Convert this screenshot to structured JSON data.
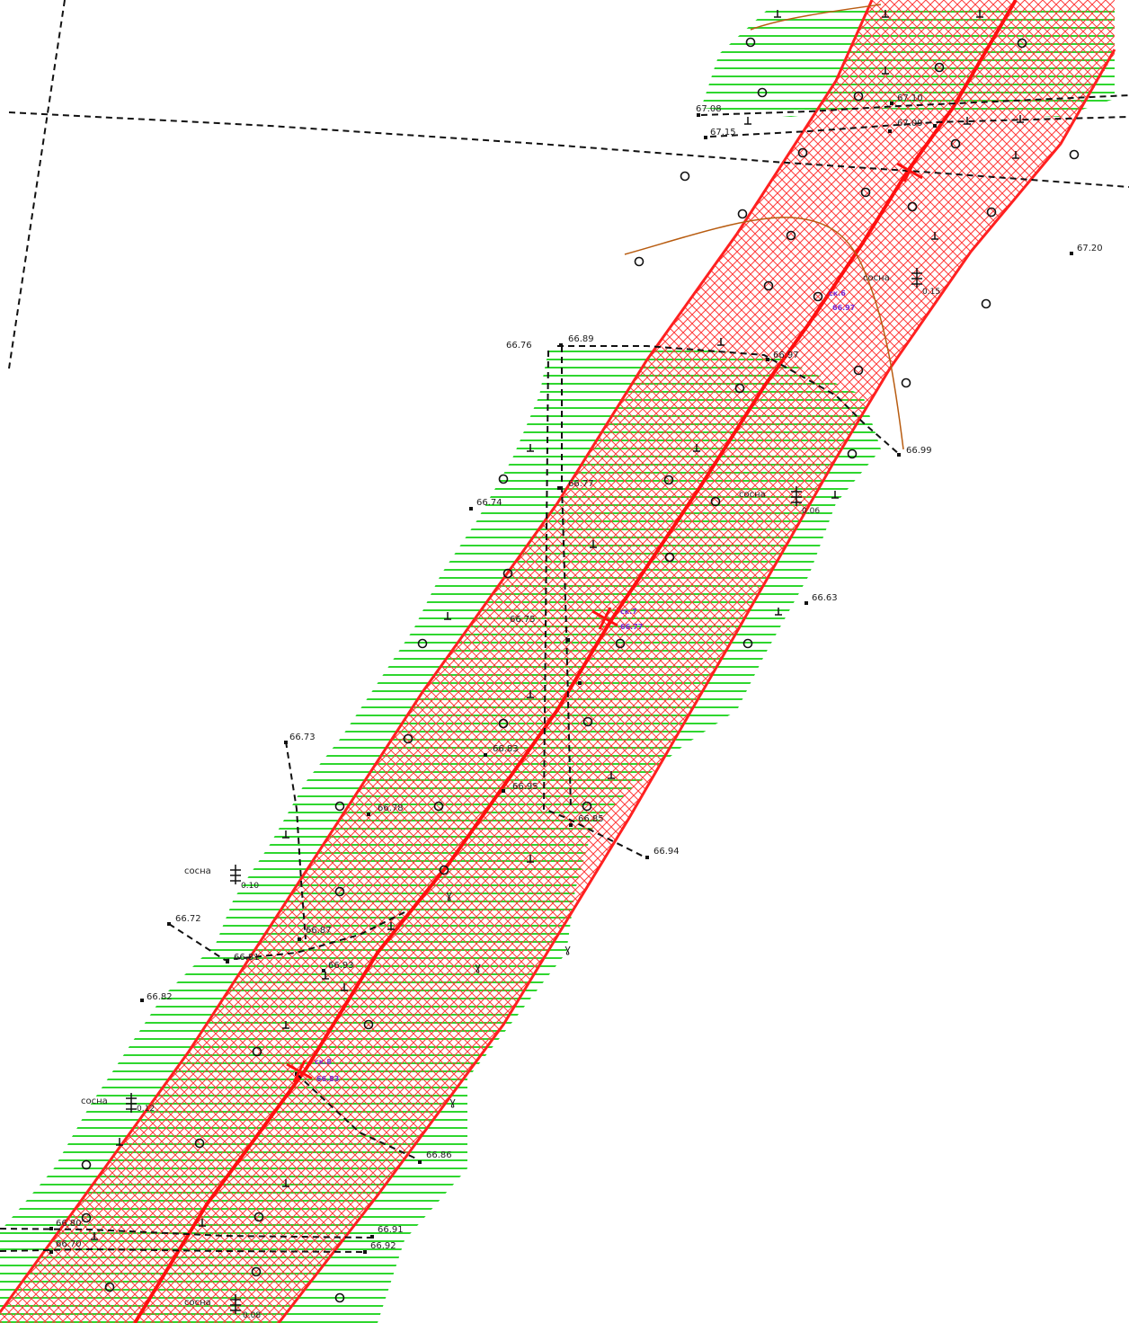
{
  "colors": {
    "background": "#ffffff",
    "vegetation_hatch": "#2fd62f",
    "protection_zone": "#ff2020",
    "zone_crosshatch": "#ff3a3a",
    "boundary_line": "#111111",
    "contour_line": "#b85c10",
    "survey_label_purple": "#7a2ad0"
  },
  "icons": {
    "survey_point": "square-dot-icon",
    "tree_symbol": "pine-tree-icon",
    "circle_symbol": "circle-marker-icon",
    "perpendicular_symbol": "perpendicular-icon",
    "pipe_axis_cross": "cross-marker-icon"
  },
  "elevation_labels": [
    {
      "id": "e1",
      "text": "67.08"
    },
    {
      "id": "e2",
      "text": "67.15"
    },
    {
      "id": "e3",
      "text": "67.10"
    },
    {
      "id": "e4",
      "text": "67.09"
    },
    {
      "id": "e5",
      "text": "67.20"
    },
    {
      "id": "e6",
      "text": "66.76"
    },
    {
      "id": "e7",
      "text": "66.89"
    },
    {
      "id": "e8",
      "text": "66.99"
    },
    {
      "id": "e9",
      "text": "66.74"
    },
    {
      "id": "e10",
      "text": "66.63"
    },
    {
      "id": "e11",
      "text": "66.75"
    },
    {
      "id": "e12",
      "text": "66.73"
    },
    {
      "id": "e13",
      "text": "66.94"
    },
    {
      "id": "e14",
      "text": "66.72"
    },
    {
      "id": "e15",
      "text": "66.82"
    },
    {
      "id": "e16",
      "text": "66.86"
    },
    {
      "id": "e17",
      "text": "66.91"
    },
    {
      "id": "e18",
      "text": "66.92"
    },
    {
      "id": "e19",
      "text": "66.80"
    },
    {
      "id": "e20",
      "text": "66.70"
    },
    {
      "id": "e21",
      "text": "66.97"
    },
    {
      "id": "e22",
      "text": "66.77"
    },
    {
      "id": "e23",
      "text": "66.83"
    },
    {
      "id": "e24",
      "text": "66.95"
    },
    {
      "id": "e25",
      "text": "66.78"
    },
    {
      "id": "e26",
      "text": "66.85"
    },
    {
      "id": "e27",
      "text": "66.87"
    },
    {
      "id": "e28",
      "text": "66.93"
    },
    {
      "id": "e29",
      "text": "66.81"
    }
  ],
  "tree_labels": [
    {
      "id": "t1",
      "name": "сосна",
      "size": "0.10"
    },
    {
      "id": "t2",
      "name": "сосна",
      "size": "0.15"
    },
    {
      "id": "t3",
      "name": "сосна",
      "size": "0.06"
    },
    {
      "id": "t4",
      "name": "сосна",
      "size": "0.12"
    },
    {
      "id": "t5",
      "name": "сосна",
      "size": "0.08"
    }
  ],
  "purple_labels": [
    {
      "id": "p1",
      "top": "ск.6",
      "bottom": "66.97"
    },
    {
      "id": "p2",
      "top": "ск.7",
      "bottom": "66.77"
    },
    {
      "id": "p3",
      "top": "ск.8",
      "bottom": "66.83"
    }
  ],
  "symbol_labels": [
    {
      "id": "s1",
      "text": "ɣ"
    },
    {
      "id": "s2",
      "text": "ɣ"
    },
    {
      "id": "s3",
      "text": "ɣ"
    },
    {
      "id": "s4",
      "text": "ɣ"
    }
  ]
}
